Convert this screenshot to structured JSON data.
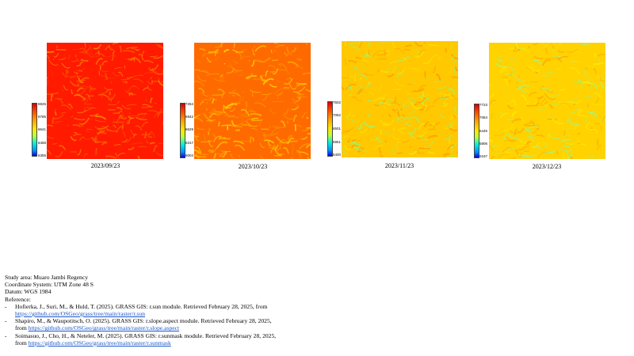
{
  "panels": [
    {
      "date": "2023/09/23",
      "ticks": [
        "6925",
        "6785",
        "6641",
        "6458",
        "6355"
      ],
      "c1": "#ff1a00",
      "c2": "#ff4a00",
      "c3": "#ff7a00",
      "stripe": "#ff6a00"
    },
    {
      "date": "2023/10/23",
      "ticks": [
        "7254",
        "6942",
        "6629",
        "6317",
        "6004"
      ],
      "c1": "#ff6a00",
      "c2": "#ff8c00",
      "c3": "#ffb000",
      "stripe": "#ffc800"
    },
    {
      "date": "2023/11/23",
      "ticks": [
        "7602",
        "7052",
        "6501",
        "5951",
        "5400"
      ],
      "c1": "#ffc800",
      "c2": "#ffe000",
      "c3": "#ff9a00",
      "stripe": "#a8f060"
    },
    {
      "date": "2023/12/23",
      "ticks": [
        "7723",
        "7084",
        "6445",
        "5806",
        "5167"
      ],
      "c1": "#ffd200",
      "c2": "#ffe600",
      "c3": "#ffaa00",
      "stripe": "#b0f070"
    }
  ],
  "info": {
    "study_area": "Study area: Muaro Jambi Regency",
    "coordinate_system": "Coordinate System: UTM Zone 48 S",
    "datum": "Datum: WGS 1984",
    "reference_heading": "Reference:",
    "references": [
      {
        "dash": "-",
        "text": "Hofierka, J., Suri, M., & Huld, T. (2025). GRASS GIS: r.sun module. Retrieved February 28, 2025, from ",
        "link": "https://github.com/OSGeo/grass/tree/main/raster/r.sun"
      },
      {
        "dash": "-",
        "text": "Shapiro, M., & Waupotitsch, O. (2025). GRASS GIS: r.slope.aspect module. Retrieved February 28, 2025, from ",
        "link": "https://github.com/OSGeo/grass/tree/main/raster/r.slope.aspect"
      },
      {
        "dash": "-",
        "text": "Soimasuo, J., Cho, H., & Neteler, M. (2025). GRASS GIS: r.sunmask module. Retrieved February 28, 2025, from ",
        "link": "https://github.com/OSGeo/grass/tree/main/raster/r.sunmask"
      }
    ]
  }
}
